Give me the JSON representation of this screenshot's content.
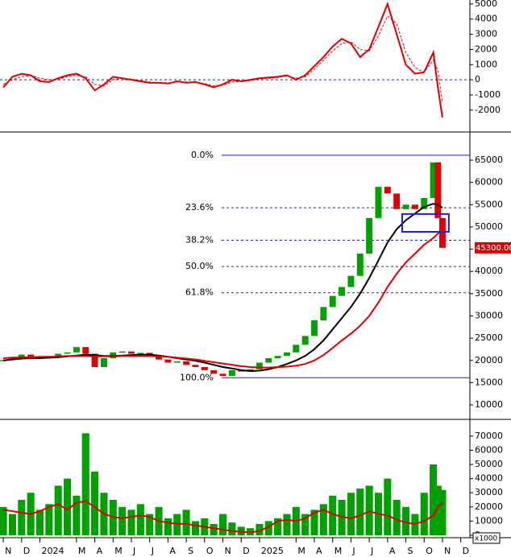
{
  "chart_data": [
    {
      "type": "line",
      "x": [
        0,
        0.5,
        1,
        1.5,
        2,
        2.5,
        3,
        3.5,
        4,
        4.5,
        5,
        5.5,
        6,
        6.5,
        7,
        7.5,
        8,
        8.5,
        9,
        9.5,
        10,
        10.5,
        11,
        11.5,
        12,
        12.5,
        13,
        13.5,
        14,
        14.5,
        15,
        15.5,
        16,
        16.5,
        17,
        17.5,
        18,
        18.5,
        19,
        19.5,
        20,
        20.5,
        21,
        21.5,
        22,
        22.5,
        23,
        23.5,
        23.75,
        24
      ],
      "series": [
        {
          "color": "#e00000",
          "style": "solid",
          "values": [
            -500,
            200,
            400,
            300,
            -100,
            -150,
            100,
            300,
            400,
            100,
            -700,
            -300,
            200,
            100,
            0,
            -100,
            -200,
            -200,
            -250,
            -100,
            -200,
            -150,
            -300,
            -500,
            -300,
            0,
            -100,
            0,
            100,
            150,
            200,
            300,
            0,
            300,
            900,
            1500,
            2200,
            2700,
            2400,
            1500,
            2000,
            3500,
            5000,
            3000,
            1000,
            400,
            500,
            1800,
            -500,
            -2500
          ]
        },
        {
          "color": "#e00000",
          "style": "dashed",
          "values": [
            -300,
            0,
            200,
            300,
            100,
            0,
            50,
            200,
            300,
            200,
            -300,
            -400,
            0,
            100,
            50,
            -50,
            -150,
            -200,
            -200,
            -150,
            -150,
            -150,
            -250,
            -400,
            -350,
            -150,
            -100,
            -50,
            50,
            100,
            150,
            250,
            100,
            200,
            700,
            1300,
            1900,
            2400,
            2500,
            2000,
            1900,
            2900,
            4200,
            3700,
            1800,
            800,
            500,
            1300,
            600,
            -1500
          ]
        }
      ],
      "reference_lines": [
        0
      ],
      "ylim": [
        -3390,
        5260
      ],
      "yticks": [
        5000,
        4000,
        3000,
        2000,
        1000,
        0,
        -1000,
        -2000
      ]
    },
    {
      "type": "candlestick",
      "x": [
        0,
        0.5,
        1,
        1.5,
        2,
        2.5,
        3,
        3.5,
        4,
        4.5,
        5,
        5.5,
        6,
        6.5,
        7,
        7.5,
        8,
        8.5,
        9,
        9.5,
        10,
        10.5,
        11,
        11.5,
        12,
        12.5,
        13,
        13.5,
        14,
        14.5,
        15,
        15.5,
        16,
        16.5,
        17,
        17.5,
        18,
        18.5,
        19,
        19.5,
        20,
        20.5,
        21,
        21.5,
        22,
        22.5,
        23,
        23.5,
        23.75,
        24
      ],
      "values": [
        20100,
        20800,
        21300,
        20700,
        20500,
        20900,
        21500,
        21800,
        23000,
        21500,
        18500,
        20500,
        21800,
        22000,
        21500,
        21700,
        20900,
        20200,
        19500,
        19800,
        19000,
        18500,
        17800,
        17000,
        16500,
        17800,
        17500,
        18000,
        19500,
        20500,
        21000,
        21800,
        23500,
        25500,
        29000,
        32000,
        34500,
        36500,
        39000,
        44000,
        52000,
        59000,
        57500,
        54000,
        55000,
        54000,
        56500,
        64500,
        52000,
        45300
      ],
      "up_color": "#00a000",
      "down_color": "#e00000",
      "series": [
        {
          "color": "#000000",
          "values": [
            20000,
            20200,
            20400,
            20500,
            20500,
            20600,
            20700,
            20900,
            21100,
            21300,
            21200,
            21000,
            21000,
            21100,
            21200,
            21300,
            21300,
            21100,
            20800,
            20500,
            20200,
            19900,
            19500,
            19000,
            18500,
            18200,
            17800,
            17600,
            17700,
            18000,
            18500,
            19200,
            20000,
            21000,
            22500,
            24500,
            27000,
            29500,
            32000,
            35000,
            38500,
            42500,
            46500,
            49500,
            51500,
            53000,
            54500,
            55200,
            55000,
            54300
          ]
        },
        {
          "color": "#e00000",
          "values": [
            20500,
            20600,
            20700,
            20700,
            20800,
            20800,
            20900,
            21000,
            21000,
            21000,
            20900,
            20900,
            20900,
            21000,
            21000,
            21000,
            21000,
            20900,
            20800,
            20600,
            20400,
            20200,
            19900,
            19600,
            19300,
            19000,
            18700,
            18500,
            18400,
            18400,
            18500,
            18600,
            18800,
            19200,
            20000,
            21200,
            22800,
            24500,
            26000,
            27800,
            30000,
            33000,
            36500,
            39500,
            42000,
            44000,
            46000,
            47500,
            48500,
            49400
          ]
        }
      ],
      "fibonacci": [
        {
          "label": "0.0%",
          "value": 66100,
          "style": "solid"
        },
        {
          "label": "23.6%",
          "value": 54300,
          "style": "dashed"
        },
        {
          "label": "38.2%",
          "value": 47000,
          "style": "dashed"
        },
        {
          "label": "50.0%",
          "value": 41100,
          "style": "dashed"
        },
        {
          "label": "61.8%",
          "value": 35200,
          "style": "dashed"
        },
        {
          "label": "100.0%",
          "value": 16100,
          "style": "solid"
        }
      ],
      "fib_color": "#2020c0",
      "highlight_box": {
        "x": [
          21.8,
          24.35
        ],
        "y": [
          48900,
          52900
        ],
        "color": "#2020d0"
      },
      "last_price": {
        "value": 45300,
        "label": "45300.00"
      },
      "ylim": [
        6930,
        71150
      ],
      "yticks": [
        10000,
        15000,
        20000,
        25000,
        30000,
        35000,
        40000,
        45000,
        50000,
        55000,
        60000,
        65000
      ]
    },
    {
      "type": "bar",
      "x": [
        0,
        0.5,
        1,
        1.5,
        2,
        2.5,
        3,
        3.5,
        4,
        4.5,
        5,
        5.5,
        6,
        6.5,
        7,
        7.5,
        8,
        8.5,
        9,
        9.5,
        10,
        10.5,
        11,
        11.5,
        12,
        12.5,
        13,
        13.5,
        14,
        14.5,
        15,
        15.5,
        16,
        16.5,
        17,
        17.5,
        18,
        18.5,
        19,
        19.5,
        20,
        20.5,
        21,
        21.5,
        22,
        22.5,
        23,
        23.5,
        23.75,
        24
      ],
      "values": [
        20000,
        15000,
        25000,
        30000,
        18000,
        22000,
        35000,
        40000,
        28000,
        72000,
        45000,
        30000,
        25000,
        20000,
        18000,
        22000,
        15000,
        20000,
        12000,
        15000,
        18000,
        10000,
        12000,
        8000,
        15000,
        9000,
        6000,
        5000,
        8000,
        10000,
        12000,
        15000,
        20000,
        15000,
        18000,
        22000,
        28000,
        25000,
        30000,
        33000,
        35000,
        30000,
        40000,
        25000,
        20000,
        15000,
        30000,
        50000,
        35000,
        32000
      ],
      "color": "#00a000",
      "series": [
        {
          "color": "#e00000",
          "values": [
            18000,
            17000,
            16000,
            15000,
            17000,
            20000,
            22000,
            18000,
            23000,
            24000,
            20000,
            15000,
            13000,
            12000,
            13000,
            14000,
            13000,
            10000,
            9000,
            8000,
            8000,
            7000,
            6000,
            5000,
            4000,
            3000,
            2500,
            2000,
            3000,
            6000,
            10000,
            11000,
            10000,
            12000,
            16000,
            18000,
            15000,
            13000,
            12000,
            14000,
            17000,
            15000,
            14000,
            11000,
            9000,
            8000,
            10000,
            14000,
            20000,
            23000
          ]
        }
      ],
      "unit_label": "x1000",
      "ylim": [
        -1700,
        80700
      ],
      "yticks": [
        0,
        10000,
        20000,
        30000,
        40000,
        50000,
        60000,
        70000
      ],
      "xlim": [
        -0.18,
        25.5
      ],
      "xticks": [
        {
          "value": 0,
          "label": "N"
        },
        {
          "value": 1,
          "label": "D"
        },
        {
          "value": 2,
          "label": "2024"
        },
        {
          "value": 4,
          "label": "M"
        },
        {
          "value": 5,
          "label": "A"
        },
        {
          "value": 6,
          "label": "M"
        },
        {
          "value": 7,
          "label": "J"
        },
        {
          "value": 8,
          "label": "J"
        },
        {
          "value": 9,
          "label": "A"
        },
        {
          "value": 10,
          "label": "S"
        },
        {
          "value": 11,
          "label": "O"
        },
        {
          "value": 12,
          "label": "N"
        },
        {
          "value": 13,
          "label": "D"
        },
        {
          "value": 14,
          "label": "2025"
        },
        {
          "value": 16,
          "label": "M"
        },
        {
          "value": 17,
          "label": "A"
        },
        {
          "value": 18,
          "label": "M"
        },
        {
          "value": 19,
          "label": "J"
        },
        {
          "value": 20,
          "label": "J"
        },
        {
          "value": 21,
          "label": "A"
        },
        {
          "value": 22,
          "label": "S"
        },
        {
          "value": 23,
          "label": "O"
        },
        {
          "value": 24,
          "label": "N"
        },
        {
          "value": 25,
          "label": "D"
        }
      ]
    }
  ]
}
